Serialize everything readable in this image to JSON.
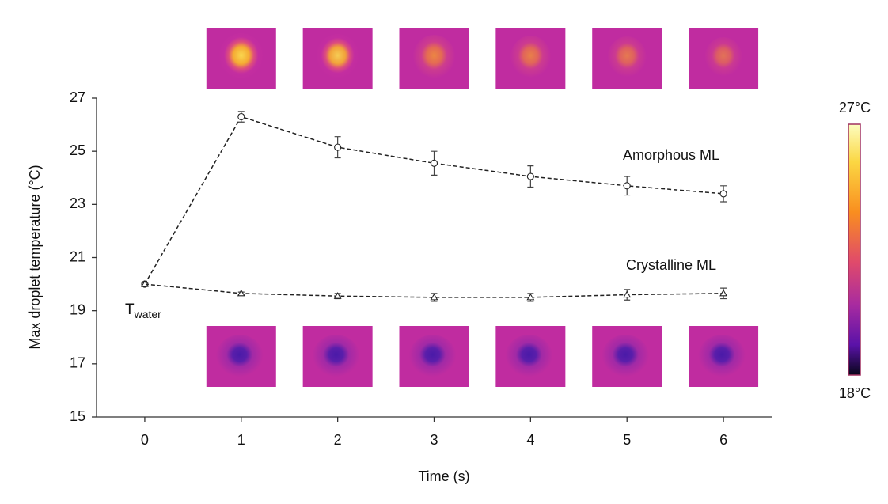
{
  "chart_data": {
    "type": "line",
    "x_label": "Time (s)",
    "y_label": "Max droplet temperature (°C)",
    "x": [
      0,
      1,
      2,
      3,
      4,
      5,
      6
    ],
    "xlim": [
      -0.5,
      6.5
    ],
    "xticks": [
      0,
      1,
      2,
      3,
      4,
      5,
      6
    ],
    "ylim": [
      15,
      27
    ],
    "yticks": [
      15,
      17,
      19,
      21,
      23,
      25,
      27
    ],
    "series": [
      {
        "name": "Amorphous ML",
        "color": "#222222",
        "marker": "circle",
        "values": [
          20.0,
          26.3,
          25.15,
          24.55,
          24.05,
          23.7,
          23.4
        ],
        "errors": [
          0.05,
          0.2,
          0.4,
          0.45,
          0.4,
          0.35,
          0.3
        ]
      },
      {
        "name": "Crystalline ML",
        "color": "#222222",
        "marker": "triangle",
        "values": [
          20.0,
          19.65,
          19.55,
          19.5,
          19.5,
          19.6,
          19.65
        ],
        "errors": [
          0.05,
          0.05,
          0.1,
          0.15,
          0.15,
          0.2,
          0.2
        ]
      }
    ],
    "annotation": {
      "main": "T",
      "sub": "water"
    },
    "colorbar": {
      "top_label": "27°C",
      "bottom_label": "18°C"
    }
  }
}
